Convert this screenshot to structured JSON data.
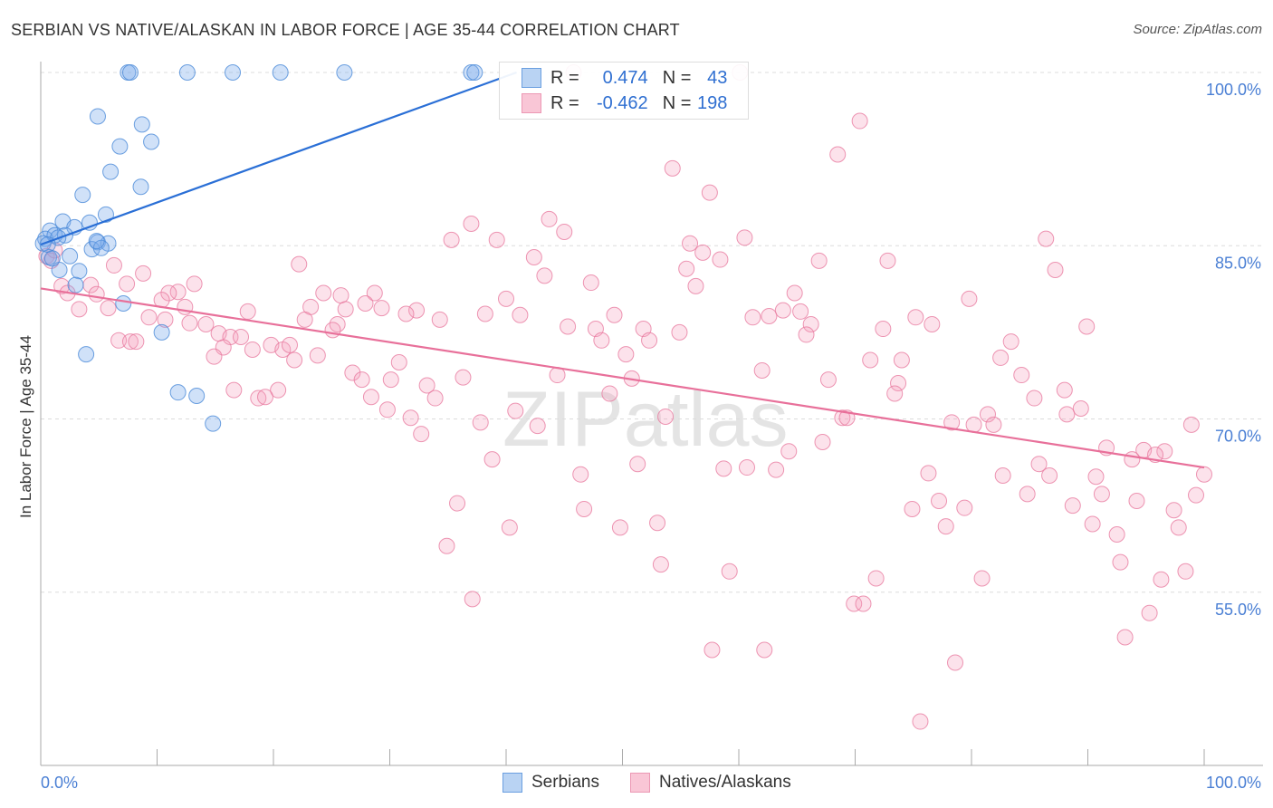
{
  "title": "SERBIAN VS NATIVE/ALASKAN IN LABOR FORCE | AGE 35-44 CORRELATION CHART",
  "source": "Source: ZipAtlas.com",
  "watermark": "ZIPatlas",
  "legend": {
    "r_label": "R =",
    "n_label": "N =",
    "serbians": {
      "r": "0.474",
      "n": "43"
    },
    "natives": {
      "r": "-0.462",
      "n": "198"
    }
  },
  "colors": {
    "blue": "#4a8ad8",
    "pink": "#e87ca0",
    "blue_line": "#2a6fd6",
    "pink_line": "#e8709a"
  },
  "chart_data": {
    "type": "scatter",
    "title": "SERBIAN VS NATIVE/ALASKAN IN LABOR FORCE | AGE 35-44 CORRELATION CHART",
    "xlabel": "",
    "ylabel": "In Labor Force | Age 35-44",
    "xlim": [
      0,
      100
    ],
    "ylim": [
      40,
      100
    ],
    "x_tick_labels": [
      "0.0%",
      "100.0%"
    ],
    "y_ticks": [
      55,
      70,
      85,
      100
    ],
    "y_tick_labels": [
      "55.0%",
      "70.0%",
      "85.0%",
      "100.0%"
    ],
    "grid": true,
    "legend_placement": "bottom",
    "series": [
      {
        "name": "Serbians",
        "trend": [
          [
            0,
            85.1
          ],
          [
            40.9,
            100
          ]
        ],
        "points": [
          [
            7.5,
            100
          ],
          [
            7.7,
            100
          ],
          [
            12.6,
            100
          ],
          [
            16.5,
            100
          ],
          [
            20.6,
            100
          ],
          [
            26.1,
            100
          ],
          [
            37.0,
            100
          ],
          [
            37.3,
            100
          ],
          [
            4.9,
            96.2
          ],
          [
            8.7,
            95.5
          ],
          [
            6.8,
            93.6
          ],
          [
            9.5,
            94.0
          ],
          [
            6.0,
            91.4
          ],
          [
            8.6,
            90.1
          ],
          [
            3.6,
            89.4
          ],
          [
            5.6,
            87.7
          ],
          [
            1.9,
            87.1
          ],
          [
            4.2,
            87.0
          ],
          [
            2.9,
            86.6
          ],
          [
            0.8,
            86.3
          ],
          [
            0.4,
            85.6
          ],
          [
            1.2,
            85.9
          ],
          [
            2.1,
            85.9
          ],
          [
            1.5,
            85.7
          ],
          [
            4.9,
            85.3
          ],
          [
            5.8,
            85.2
          ],
          [
            4.4,
            84.7
          ],
          [
            5.2,
            84.8
          ],
          [
            2.5,
            84.1
          ],
          [
            0.7,
            84.0
          ],
          [
            1.6,
            82.9
          ],
          [
            3.3,
            82.8
          ],
          [
            3.0,
            81.6
          ],
          [
            7.1,
            80.0
          ],
          [
            10.4,
            77.5
          ],
          [
            3.9,
            75.6
          ],
          [
            11.8,
            72.3
          ],
          [
            13.4,
            72.0
          ],
          [
            14.8,
            69.6
          ],
          [
            0.2,
            85.2
          ],
          [
            0.6,
            85.1
          ],
          [
            1.0,
            83.9
          ],
          [
            4.8,
            85.4
          ]
        ]
      },
      {
        "name": "Natives/Alaskans",
        "trend": [
          [
            0,
            81.3
          ],
          [
            100,
            65.8
          ]
        ],
        "points": [
          [
            45.8,
            100
          ],
          [
            60.1,
            100
          ],
          [
            70.4,
            95.8
          ],
          [
            68.5,
            92.9
          ],
          [
            54.3,
            91.7
          ],
          [
            57.5,
            89.6
          ],
          [
            43.7,
            87.3
          ],
          [
            37.0,
            86.9
          ],
          [
            45.0,
            86.2
          ],
          [
            35.3,
            85.5
          ],
          [
            39.2,
            85.5
          ],
          [
            60.5,
            85.7
          ],
          [
            55.8,
            85.2
          ],
          [
            86.4,
            85.6
          ],
          [
            56.9,
            84.4
          ],
          [
            42.4,
            84.0
          ],
          [
            58.4,
            83.8
          ],
          [
            66.9,
            83.7
          ],
          [
            72.8,
            83.7
          ],
          [
            55.5,
            83.0
          ],
          [
            87.2,
            82.9
          ],
          [
            43.3,
            82.4
          ],
          [
            22.2,
            83.4
          ],
          [
            6.3,
            83.3
          ],
          [
            8.8,
            82.6
          ],
          [
            56.3,
            81.5
          ],
          [
            47.3,
            81.8
          ],
          [
            13.2,
            81.7
          ],
          [
            7.4,
            81.7
          ],
          [
            4.3,
            81.6
          ],
          [
            1.8,
            81.5
          ],
          [
            11.8,
            81.0
          ],
          [
            11.0,
            80.9
          ],
          [
            24.3,
            80.9
          ],
          [
            28.7,
            80.9
          ],
          [
            64.8,
            80.9
          ],
          [
            40.0,
            80.4
          ],
          [
            25.8,
            80.7
          ],
          [
            79.8,
            80.4
          ],
          [
            4.8,
            80.8
          ],
          [
            2.3,
            80.9
          ],
          [
            10.4,
            80.3
          ],
          [
            27.9,
            80.0
          ],
          [
            23.2,
            79.7
          ],
          [
            29.3,
            79.6
          ],
          [
            26.2,
            79.5
          ],
          [
            32.3,
            79.4
          ],
          [
            31.4,
            79.1
          ],
          [
            38.2,
            79.1
          ],
          [
            41.2,
            79.0
          ],
          [
            5.8,
            79.6
          ],
          [
            3.3,
            79.5
          ],
          [
            12.4,
            79.7
          ],
          [
            17.8,
            79.3
          ],
          [
            49.3,
            79.0
          ],
          [
            63.8,
            79.4
          ],
          [
            65.3,
            79.3
          ],
          [
            61.2,
            78.8
          ],
          [
            62.6,
            78.9
          ],
          [
            75.2,
            78.8
          ],
          [
            9.3,
            78.8
          ],
          [
            10.7,
            78.6
          ],
          [
            22.7,
            78.6
          ],
          [
            34.3,
            78.6
          ],
          [
            76.6,
            78.2
          ],
          [
            89.9,
            78.0
          ],
          [
            66.2,
            78.2
          ],
          [
            12.8,
            78.3
          ],
          [
            14.2,
            78.2
          ],
          [
            25.5,
            78.2
          ],
          [
            25.1,
            77.7
          ],
          [
            45.3,
            78.0
          ],
          [
            47.7,
            77.8
          ],
          [
            51.8,
            77.8
          ],
          [
            54.9,
            77.5
          ],
          [
            72.4,
            77.8
          ],
          [
            65.8,
            77.3
          ],
          [
            15.3,
            77.4
          ],
          [
            16.3,
            77.1
          ],
          [
            17.2,
            77.1
          ],
          [
            48.2,
            76.8
          ],
          [
            52.3,
            76.8
          ],
          [
            6.7,
            76.8
          ],
          [
            7.7,
            76.7
          ],
          [
            8.2,
            76.7
          ],
          [
            83.4,
            76.7
          ],
          [
            15.7,
            76.2
          ],
          [
            18.2,
            76.0
          ],
          [
            19.8,
            76.4
          ],
          [
            20.8,
            76.0
          ],
          [
            21.4,
            76.4
          ],
          [
            50.3,
            75.6
          ],
          [
            14.9,
            75.4
          ],
          [
            21.8,
            75.1
          ],
          [
            23.8,
            75.5
          ],
          [
            30.8,
            74.9
          ],
          [
            74.0,
            75.1
          ],
          [
            82.5,
            75.3
          ],
          [
            71.3,
            75.1
          ],
          [
            26.8,
            74.0
          ],
          [
            27.6,
            73.4
          ],
          [
            30.1,
            73.4
          ],
          [
            36.3,
            73.6
          ],
          [
            44.4,
            73.8
          ],
          [
            50.8,
            73.5
          ],
          [
            62.0,
            74.2
          ],
          [
            67.7,
            73.4
          ],
          [
            73.7,
            73.1
          ],
          [
            84.3,
            73.8
          ],
          [
            33.2,
            72.9
          ],
          [
            48.9,
            72.2
          ],
          [
            73.4,
            72.2
          ],
          [
            88.0,
            72.5
          ],
          [
            16.6,
            72.5
          ],
          [
            20.4,
            72.5
          ],
          [
            18.7,
            71.8
          ],
          [
            19.3,
            71.9
          ],
          [
            28.4,
            71.9
          ],
          [
            33.9,
            71.8
          ],
          [
            85.4,
            71.8
          ],
          [
            29.8,
            70.8
          ],
          [
            40.8,
            70.7
          ],
          [
            89.4,
            70.9
          ],
          [
            88.2,
            70.4
          ],
          [
            81.4,
            70.4
          ],
          [
            31.8,
            70.1
          ],
          [
            53.7,
            70.2
          ],
          [
            68.9,
            70.1
          ],
          [
            69.3,
            70.1
          ],
          [
            78.3,
            69.7
          ],
          [
            80.2,
            69.5
          ],
          [
            81.9,
            69.5
          ],
          [
            98.9,
            69.5
          ],
          [
            37.8,
            69.7
          ],
          [
            42.7,
            69.4
          ],
          [
            32.7,
            68.7
          ],
          [
            67.2,
            68.0
          ],
          [
            64.3,
            67.2
          ],
          [
            91.6,
            67.5
          ],
          [
            94.8,
            67.3
          ],
          [
            96.6,
            67.2
          ],
          [
            95.8,
            66.9
          ],
          [
            93.8,
            66.5
          ],
          [
            38.8,
            66.5
          ],
          [
            51.3,
            66.1
          ],
          [
            85.8,
            66.1
          ],
          [
            58.7,
            65.7
          ],
          [
            60.7,
            65.8
          ],
          [
            63.2,
            65.6
          ],
          [
            46.4,
            65.2
          ],
          [
            76.3,
            65.3
          ],
          [
            82.7,
            65.1
          ],
          [
            86.7,
            65.1
          ],
          [
            90.7,
            65.0
          ],
          [
            100,
            65.2
          ],
          [
            84.8,
            63.5
          ],
          [
            91.2,
            63.5
          ],
          [
            99.3,
            63.4
          ],
          [
            77.2,
            62.9
          ],
          [
            94.2,
            62.9
          ],
          [
            35.8,
            62.7
          ],
          [
            46.7,
            62.2
          ],
          [
            74.9,
            62.2
          ],
          [
            79.4,
            62.3
          ],
          [
            88.7,
            62.5
          ],
          [
            97.4,
            62.1
          ],
          [
            53.0,
            61.0
          ],
          [
            90.4,
            60.9
          ],
          [
            77.8,
            60.7
          ],
          [
            49.8,
            60.6
          ],
          [
            40.3,
            60.6
          ],
          [
            97.8,
            60.6
          ],
          [
            92.5,
            60.0
          ],
          [
            34.9,
            59.0
          ],
          [
            53.3,
            57.4
          ],
          [
            92.8,
            57.6
          ],
          [
            59.2,
            56.8
          ],
          [
            98.4,
            56.8
          ],
          [
            71.8,
            56.2
          ],
          [
            80.9,
            56.2
          ],
          [
            96.3,
            56.1
          ],
          [
            37.1,
            54.4
          ],
          [
            69.9,
            54.0
          ],
          [
            70.7,
            54.0
          ],
          [
            95.3,
            53.2
          ],
          [
            93.2,
            51.1
          ],
          [
            57.7,
            50.0
          ],
          [
            62.2,
            50.0
          ],
          [
            78.6,
            48.9
          ],
          [
            75.6,
            43.8
          ],
          [
            0.5,
            84.1
          ],
          [
            0.9,
            83.7
          ],
          [
            1.2,
            84.6
          ]
        ]
      }
    ]
  }
}
